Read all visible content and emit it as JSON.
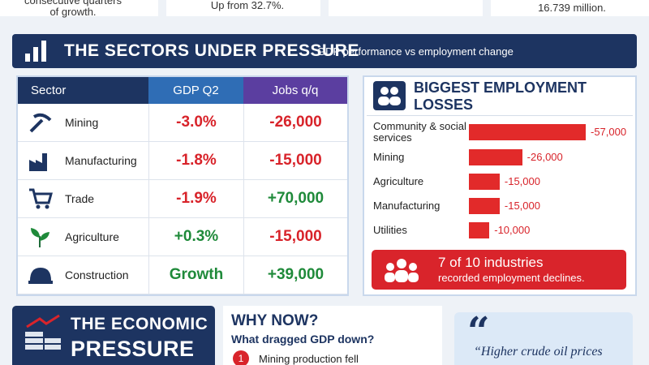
{
  "top_cards": [
    {
      "lines": [
        "consecutive quarters",
        "of growth."
      ]
    },
    {
      "lines": [
        "Up from 32.7%."
      ]
    },
    {
      "lines": [
        "16.739 million."
      ]
    }
  ],
  "sectors_header": {
    "title": "THE SECTORS UNDER PRESSURE",
    "subtitle": "GDP performance vs employment change"
  },
  "table": {
    "columns": [
      "Sector",
      "GDP Q2",
      "Jobs q/q"
    ],
    "rows": [
      [
        "Mining",
        "-3.0%",
        "-26,000"
      ],
      [
        "Manufacturing",
        "-1.8%",
        "-15,000"
      ],
      [
        "Trade",
        "-1.9%",
        "+70,000"
      ],
      [
        "Agriculture",
        "+0.3%",
        "-15,000"
      ],
      [
        "Construction",
        "Growth",
        "+39,000"
      ]
    ]
  },
  "losses": {
    "title": [
      "BIGGEST EMPLOYMENT",
      "LOSSES"
    ],
    "categories": [
      "Community & social services",
      "Mining",
      "Agriculture",
      "Manufacturing",
      "Utilities"
    ],
    "values": [
      -57000,
      -26000,
      -15000,
      -15000,
      -10000
    ],
    "value_labels": [
      "-57,000",
      "-26,000",
      "-15,000",
      "-15,000",
      "-10,000"
    ],
    "color": "#e22a2a",
    "callout": {
      "highlight": "7 of 10 industries",
      "text": "recorded employment declines."
    }
  },
  "economic": {
    "title": [
      "THE ECONOMIC",
      "PRESSURE"
    ]
  },
  "why_now": {
    "title": "WHY NOW?",
    "question": "What dragged GDP down?",
    "items": [
      {
        "number": "1",
        "text": "Mining production fell"
      }
    ]
  },
  "quote": {
    "mark": "“",
    "text": "“Higher crude oil prices"
  }
}
